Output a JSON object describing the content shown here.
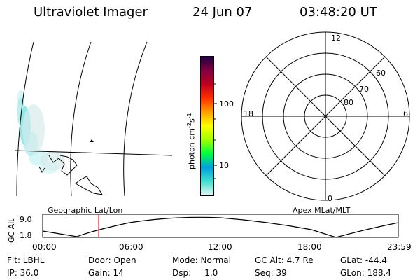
{
  "header": {
    "title": "Ultraviolet Imager",
    "date": "24 Jun 07",
    "time": "03:48:20 UT"
  },
  "colorbar": {
    "label_base": "photon cm",
    "label_exp1": "-2",
    "label_mid": "s",
    "label_exp2": "-1",
    "ticks": [
      "100",
      "10"
    ],
    "gradient_colors": [
      "#e8f4f4",
      "#40e0d0",
      "#00a0e0",
      "#00ff40",
      "#a0ff00",
      "#ffff00",
      "#ffa000",
      "#ff3000",
      "#c00020",
      "#800040",
      "#200040"
    ]
  },
  "polar": {
    "hour_labels": {
      "top": "12",
      "left": "18",
      "right": "6",
      "bottom": "0"
    },
    "lat_labels": [
      "60",
      "70",
      "80"
    ]
  },
  "timeline": {
    "left_label": "Geographic Lat/Lon",
    "right_label": "Apex MLat/MLT",
    "y_axis_label": "GC Alt",
    "y_ticks": [
      "9.0",
      "1.8"
    ],
    "x_ticks": [
      "00:00",
      "06:00",
      "12:00",
      "18:00",
      "23:59"
    ]
  },
  "info": {
    "filter": "Flt: LBHL",
    "ip": "IP: 36.0",
    "door": "Door: Open",
    "gain": "Gain: 14",
    "mode": "Mode: Normal",
    "dsp": "Dsp:     1.0",
    "gc_alt": "GC Alt: 4.7 Re",
    "seq": "Seq: 39",
    "glat": "GLat: -44.4",
    "glon": "GLon: 188.4"
  },
  "colors": {
    "aurora": "#6fe0e0",
    "time_marker": "#cc0000"
  }
}
